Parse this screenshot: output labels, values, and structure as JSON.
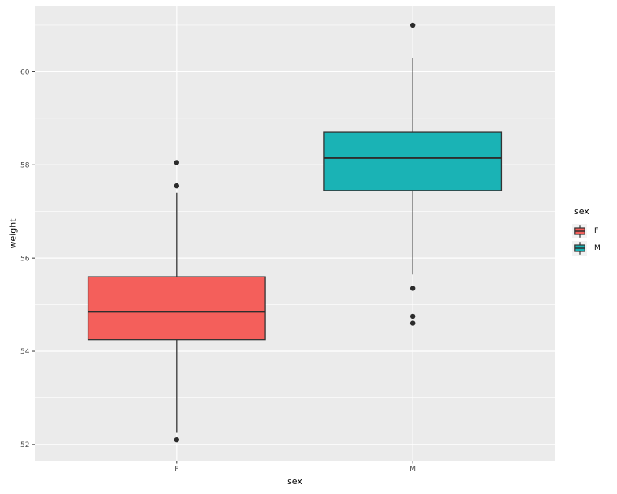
{
  "figure": {
    "background": "#FFFFFF",
    "panel_background": "#EBEBEB",
    "grid_color": "#FFFFFF",
    "tick_color": "#333333",
    "tick_label_color": "#4D4D4D",
    "axis_title_color": "#000000",
    "box_border_color": "#333333",
    "median_color": "#2E2E2E",
    "outlier_color": "#2B2B2B",
    "legend_key_background": "#F2F2F2"
  },
  "chart_data": {
    "type": "boxplot",
    "title": "",
    "xlabel": "sex",
    "ylabel": "weight",
    "categories": [
      "F",
      "M"
    ],
    "y_ticks": [
      52,
      54,
      56,
      58,
      60
    ],
    "y_minor_ticks": [
      53,
      55,
      57,
      59,
      61
    ],
    "ylim": [
      51.65,
      61.4
    ],
    "grid": true,
    "legend": {
      "title": "sex",
      "position": "right"
    },
    "series": [
      {
        "name": "F",
        "fill": "#F45F5B",
        "min": 52.25,
        "q1": 54.25,
        "median": 54.85,
        "q3": 55.6,
        "max": 57.4,
        "outliers": [
          58.05,
          57.55,
          52.1
        ]
      },
      {
        "name": "M",
        "fill": "#1AB3B5",
        "min": 55.65,
        "q1": 57.45,
        "median": 58.15,
        "q3": 58.7,
        "max": 60.3,
        "outliers": [
          61.0,
          55.35,
          54.75,
          54.6
        ]
      }
    ]
  }
}
